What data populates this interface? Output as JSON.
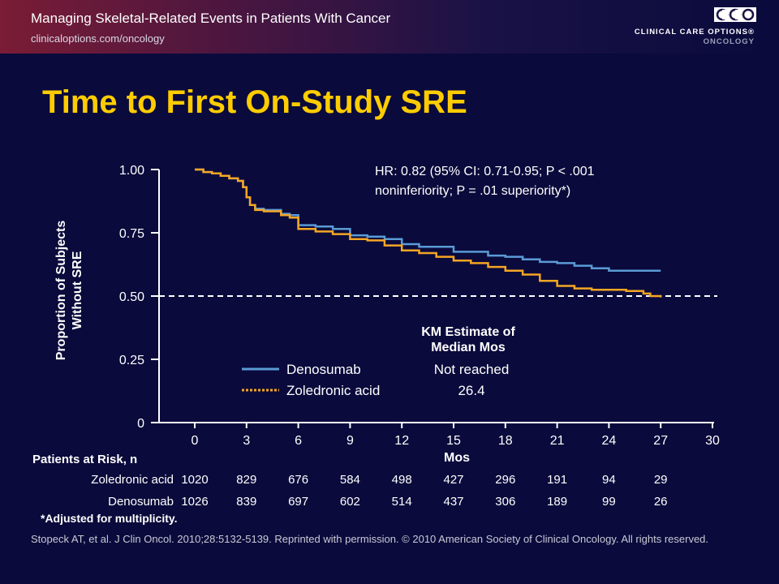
{
  "header": {
    "title": "Managing Skeletal-Related Events in Patients With Cancer",
    "url": "clinicaloptions.com/oncology",
    "logo_letters": "CCO",
    "logo_line1": "CLINICAL CARE OPTIONS®",
    "logo_line2": "ONCOLOGY"
  },
  "slide_title": "Time to First On-Study SRE",
  "colors": {
    "background": "#0a0a3c",
    "title": "#ffcc00",
    "denosumab": "#5b9bd5",
    "zoledronic": "#f5a623"
  },
  "chart_data": {
    "type": "line",
    "title": "",
    "xlabel": "Mos",
    "ylabel": "Proportion of Subjects Without SRE",
    "xlim": [
      0,
      30
    ],
    "ylim": [
      0,
      1
    ],
    "x_ticks": [
      "0",
      "3",
      "6",
      "9",
      "12",
      "15",
      "18",
      "21",
      "24",
      "27",
      "30"
    ],
    "y_ticks": [
      "0",
      "0.25",
      "0.50",
      "0.75",
      "1.00"
    ],
    "reference_line": {
      "y": 0.5,
      "style": "dashed"
    },
    "annotation_line1": "HR: 0.82 (95% CI: 0.71-0.95; P < .001",
    "annotation_line2": "noninferiority; P = .01 superiority*)",
    "km_header_line1": "KM Estimate of",
    "km_header_line2": "Median Mos",
    "series": [
      {
        "name": "Denosumab",
        "median": "Not reached",
        "style": "solid",
        "color": "#5b9bd5",
        "x": [
          0,
          0.5,
          1,
          1.5,
          2,
          2.5,
          2.8,
          3,
          3.2,
          3.5,
          4,
          5,
          5.5,
          6,
          7,
          8,
          9,
          10,
          11,
          12,
          13,
          15,
          17,
          18,
          19,
          20,
          21,
          22,
          23,
          24,
          25,
          26,
          27
        ],
        "y": [
          1.0,
          0.99,
          0.985,
          0.975,
          0.965,
          0.955,
          0.93,
          0.89,
          0.86,
          0.845,
          0.84,
          0.825,
          0.82,
          0.78,
          0.775,
          0.765,
          0.74,
          0.735,
          0.725,
          0.705,
          0.695,
          0.675,
          0.66,
          0.655,
          0.645,
          0.635,
          0.63,
          0.62,
          0.61,
          0.6,
          0.6,
          0.6,
          0.6
        ]
      },
      {
        "name": "Zoledronic acid",
        "median": "26.4",
        "style": "solid",
        "color": "#f5a623",
        "x": [
          0,
          0.5,
          1,
          1.5,
          2,
          2.5,
          2.8,
          3,
          3.2,
          3.5,
          4,
          5,
          5.5,
          6,
          7,
          8,
          9,
          10,
          11,
          12,
          13,
          14,
          15,
          16,
          17,
          18,
          19,
          20,
          21,
          22,
          23,
          24,
          25,
          26,
          26.4,
          27
        ],
        "y": [
          1.0,
          0.99,
          0.985,
          0.975,
          0.965,
          0.955,
          0.93,
          0.89,
          0.86,
          0.84,
          0.835,
          0.82,
          0.81,
          0.765,
          0.755,
          0.745,
          0.725,
          0.72,
          0.7,
          0.68,
          0.67,
          0.655,
          0.64,
          0.63,
          0.615,
          0.6,
          0.585,
          0.56,
          0.54,
          0.53,
          0.525,
          0.525,
          0.52,
          0.51,
          0.5,
          0.495
        ]
      }
    ]
  },
  "risk_table": {
    "title": "Patients at Risk, n",
    "rows": [
      {
        "label": "Zoledronic acid",
        "values": [
          "1020",
          "829",
          "676",
          "584",
          "498",
          "427",
          "296",
          "191",
          "94",
          "29"
        ]
      },
      {
        "label": "Denosumab",
        "values": [
          "1026",
          "839",
          "697",
          "602",
          "514",
          "437",
          "306",
          "189",
          "99",
          "26"
        ]
      }
    ]
  },
  "footnote": "*Adjusted for multiplicity.",
  "citation": "Stopeck AT, et al. J Clin Oncol. 2010;28:5132-5139. Reprinted with permission. © 2010 American Society of Clinical Oncology. All rights reserved."
}
